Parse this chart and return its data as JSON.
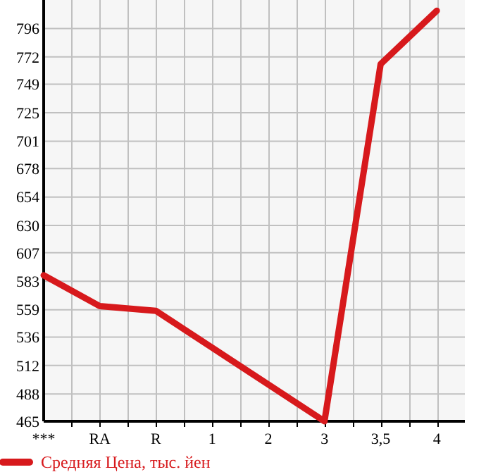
{
  "chart_data": {
    "type": "line",
    "categories": [
      "***",
      "RA",
      "R",
      "1",
      "2",
      "3",
      "3,5",
      "4"
    ],
    "series": [
      {
        "name": "Средняя Цена, тыс. йен",
        "color": "#d7191c",
        "values": [
          588,
          562,
          558,
          527,
          496,
          465,
          766,
          811
        ]
      }
    ],
    "ylim": [
      465,
      820
    ],
    "yticks": [
      465,
      488,
      512,
      536,
      559,
      583,
      607,
      630,
      654,
      678,
      701,
      725,
      749,
      772,
      796
    ],
    "grid": true,
    "legend": "bottom",
    "marker": "none",
    "line_style": "solid"
  }
}
